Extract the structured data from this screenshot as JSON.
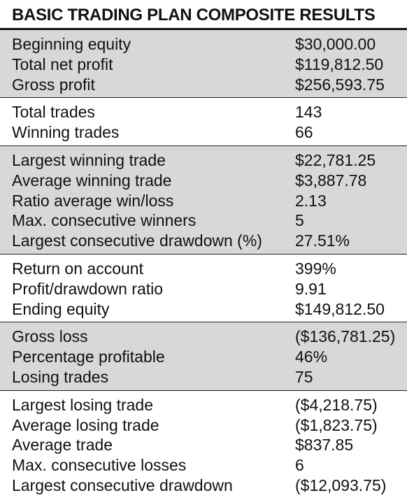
{
  "title": "BASIC TRADING PLAN COMPOSITE RESULTS",
  "colors": {
    "shade": "#d8d8d8",
    "text": "#111111"
  },
  "groups": [
    {
      "shaded": true,
      "rows": [
        {
          "label": "Beginning equity",
          "value": "$30,000.00"
        },
        {
          "label": "Total net profit",
          "value": "$119,812.50"
        },
        {
          "label": "Gross profit",
          "value": "$256,593.75"
        }
      ]
    },
    {
      "shaded": false,
      "rows": [
        {
          "label": "Total trades",
          "value": "143"
        },
        {
          "label": "Winning trades",
          "value": "66"
        }
      ]
    },
    {
      "shaded": true,
      "rows": [
        {
          "label": "Largest winning trade",
          "value": "$22,781.25"
        },
        {
          "label": "Average winning trade",
          "value": "$3,887.78"
        },
        {
          "label": "Ratio average win/loss",
          "value": "2.13"
        },
        {
          "label": "Max. consecutive winners",
          "value": "5"
        },
        {
          "label": "Largest consecutive drawdown (%)",
          "value": "27.51%"
        }
      ]
    },
    {
      "shaded": false,
      "rows": [
        {
          "label": "Return on account",
          "value": "399%"
        },
        {
          "label": "Profit/drawdown ratio",
          "value": "9.91"
        },
        {
          "label": "Ending equity",
          "value": "$149,812.50"
        }
      ]
    },
    {
      "shaded": true,
      "rows": [
        {
          "label": "Gross loss",
          "value": "($136,781.25)"
        },
        {
          "label": "Percentage profitable",
          "value": "46%"
        },
        {
          "label": "Losing trades",
          "value": "75"
        }
      ]
    },
    {
      "shaded": false,
      "rows": [
        {
          "label": "Largest losing trade",
          "value": "($4,218.75)"
        },
        {
          "label": "Average losing trade",
          "value": "($1,823.75)"
        },
        {
          "label": "Average trade",
          "value": "$837.85"
        },
        {
          "label": "Max. consecutive losses",
          "value": "6"
        },
        {
          "label": "Largest consecutive drawdown",
          "value": "($12,093.75)"
        }
      ]
    }
  ]
}
